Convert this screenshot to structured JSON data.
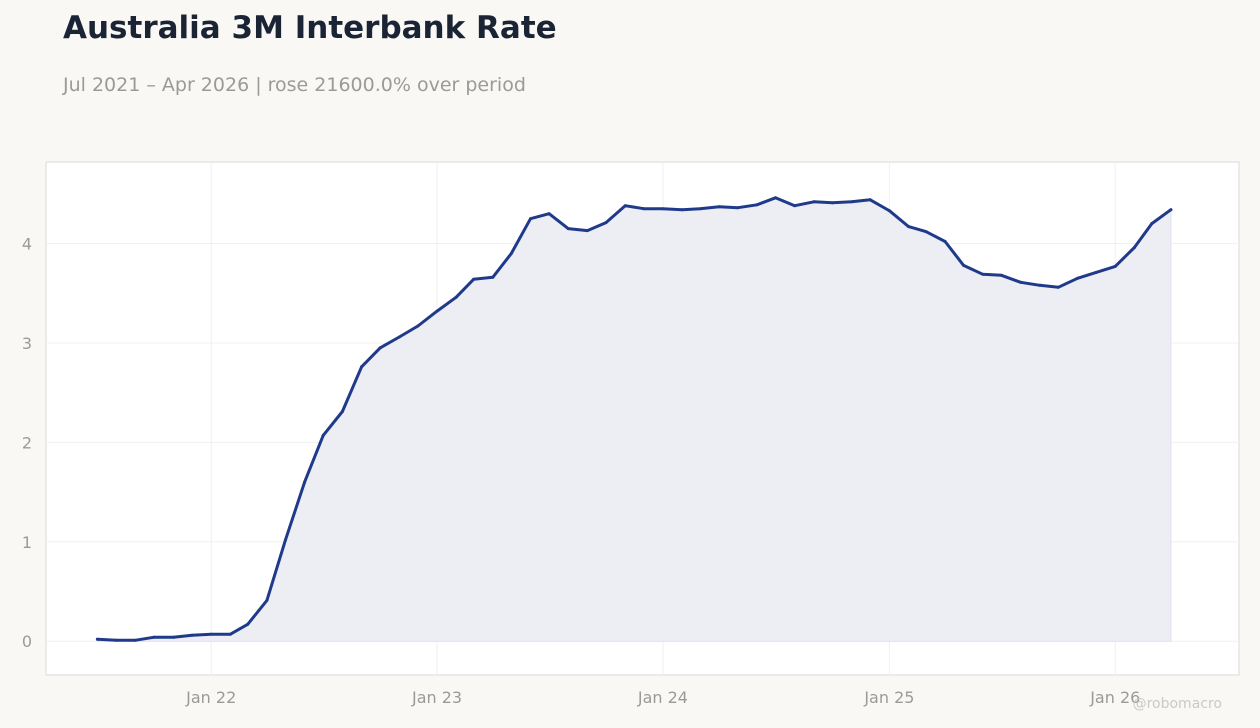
{
  "page": {
    "title": "Australia 3M Interbank Rate",
    "subtitle": "Jul 2021 – Apr 2026 | rose 21600.0% over period",
    "watermark": "@robomacro"
  },
  "colors": {
    "background": "#f9f8f5",
    "plot_background": "#ffffff",
    "line": "#1f3a8a",
    "fill": "#edeef4",
    "grid": "#f0f0ef",
    "title": "#1b2434",
    "muted": "#9a9a96"
  },
  "chart_data": {
    "type": "area",
    "title": "Australia 3M Interbank Rate",
    "subtitle": "Jul 2021 – Apr 2026 | rose 21600.0% over period",
    "xlabel": "",
    "ylabel": "",
    "grid": true,
    "legend": "none",
    "x_ticks": [
      "Jan 22",
      "Jan 23",
      "Jan 24",
      "Jan 25",
      "Jan 26"
    ],
    "x_tick_dates": [
      "2022-01-01",
      "2023-01-01",
      "2024-01-01",
      "2025-01-01",
      "2026-01-01"
    ],
    "y_ticks": [
      0,
      1,
      2,
      3,
      4
    ],
    "xlim": [
      "2021-04-09",
      "2026-07-20"
    ],
    "ylim": [
      -0.34,
      4.82
    ],
    "series": [
      {
        "x": [
          "2021-07-01",
          "2021-08-01",
          "2021-09-01",
          "2021-10-01",
          "2021-11-01",
          "2021-12-01",
          "2022-01-01",
          "2022-02-01",
          "2022-03-01",
          "2022-04-01",
          "2022-05-01",
          "2022-06-01",
          "2022-07-01",
          "2022-08-01",
          "2022-09-01",
          "2022-10-01",
          "2022-11-01",
          "2022-12-01",
          "2023-01-01",
          "2023-02-01",
          "2023-03-01",
          "2023-04-01",
          "2023-05-01",
          "2023-06-01",
          "2023-07-01",
          "2023-08-01",
          "2023-09-01",
          "2023-10-01",
          "2023-11-01",
          "2023-12-01",
          "2024-01-01",
          "2024-02-01",
          "2024-03-01",
          "2024-04-01",
          "2024-05-01",
          "2024-06-01",
          "2024-07-01",
          "2024-08-01",
          "2024-09-01",
          "2024-10-01",
          "2024-11-01",
          "2024-12-01",
          "2025-01-01",
          "2025-02-01",
          "2025-03-01",
          "2025-04-01",
          "2025-05-01",
          "2025-06-01",
          "2025-07-01",
          "2025-08-01",
          "2025-09-01",
          "2025-10-01",
          "2025-11-01",
          "2025-12-01",
          "2026-01-01",
          "2026-02-01",
          "2026-03-01",
          "2026-04-01"
        ],
        "values": [
          0.02,
          0.01,
          0.01,
          0.04,
          0.04,
          0.06,
          0.07,
          0.07,
          0.17,
          0.41,
          1.02,
          1.6,
          2.07,
          2.31,
          2.76,
          2.95,
          3.06,
          3.17,
          3.32,
          3.46,
          3.64,
          3.66,
          3.9,
          4.25,
          4.3,
          4.15,
          4.13,
          4.21,
          4.38,
          4.35,
          4.35,
          4.34,
          4.35,
          4.37,
          4.36,
          4.39,
          4.46,
          4.38,
          4.42,
          4.41,
          4.42,
          4.44,
          4.33,
          4.17,
          4.12,
          4.02,
          3.78,
          3.69,
          3.68,
          3.61,
          3.58,
          3.56,
          3.65,
          3.71,
          3.77,
          3.96,
          4.2,
          4.34
        ]
      }
    ]
  }
}
